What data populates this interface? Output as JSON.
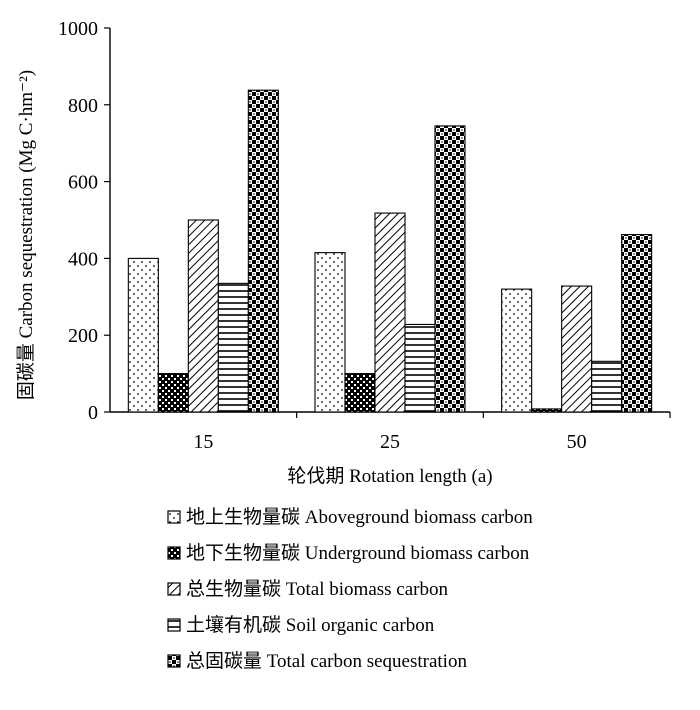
{
  "chart_data": {
    "type": "bar",
    "categories": [
      "15",
      "25",
      "50"
    ],
    "xlabel": "轮伐期 Rotation length (a)",
    "ylabel": "固碳量 Carbon sequestration (Mg C·hm⁻²)",
    "ylim": [
      0,
      1000
    ],
    "yticks": [
      0,
      200,
      400,
      600,
      800,
      1000
    ],
    "grid": false,
    "legend_position": "bottom",
    "series": [
      {
        "name": "地上生物量碳 Aboveground biomass carbon",
        "pattern": "dots",
        "values": [
          400,
          415,
          320
        ]
      },
      {
        "name": "地下生物量碳 Underground biomass carbon",
        "pattern": "dark-check",
        "values": [
          100,
          100,
          8
        ]
      },
      {
        "name": "总生物量碳 Total biomass carbon",
        "pattern": "diagonal",
        "values": [
          500,
          518,
          328
        ]
      },
      {
        "name": "土壤有机碳 Soil organic carbon",
        "pattern": "horizontal",
        "values": [
          335,
          228,
          132
        ]
      },
      {
        "name": "总固碳量 Total carbon sequestration",
        "pattern": "checker",
        "values": [
          838,
          745,
          462
        ]
      }
    ]
  }
}
